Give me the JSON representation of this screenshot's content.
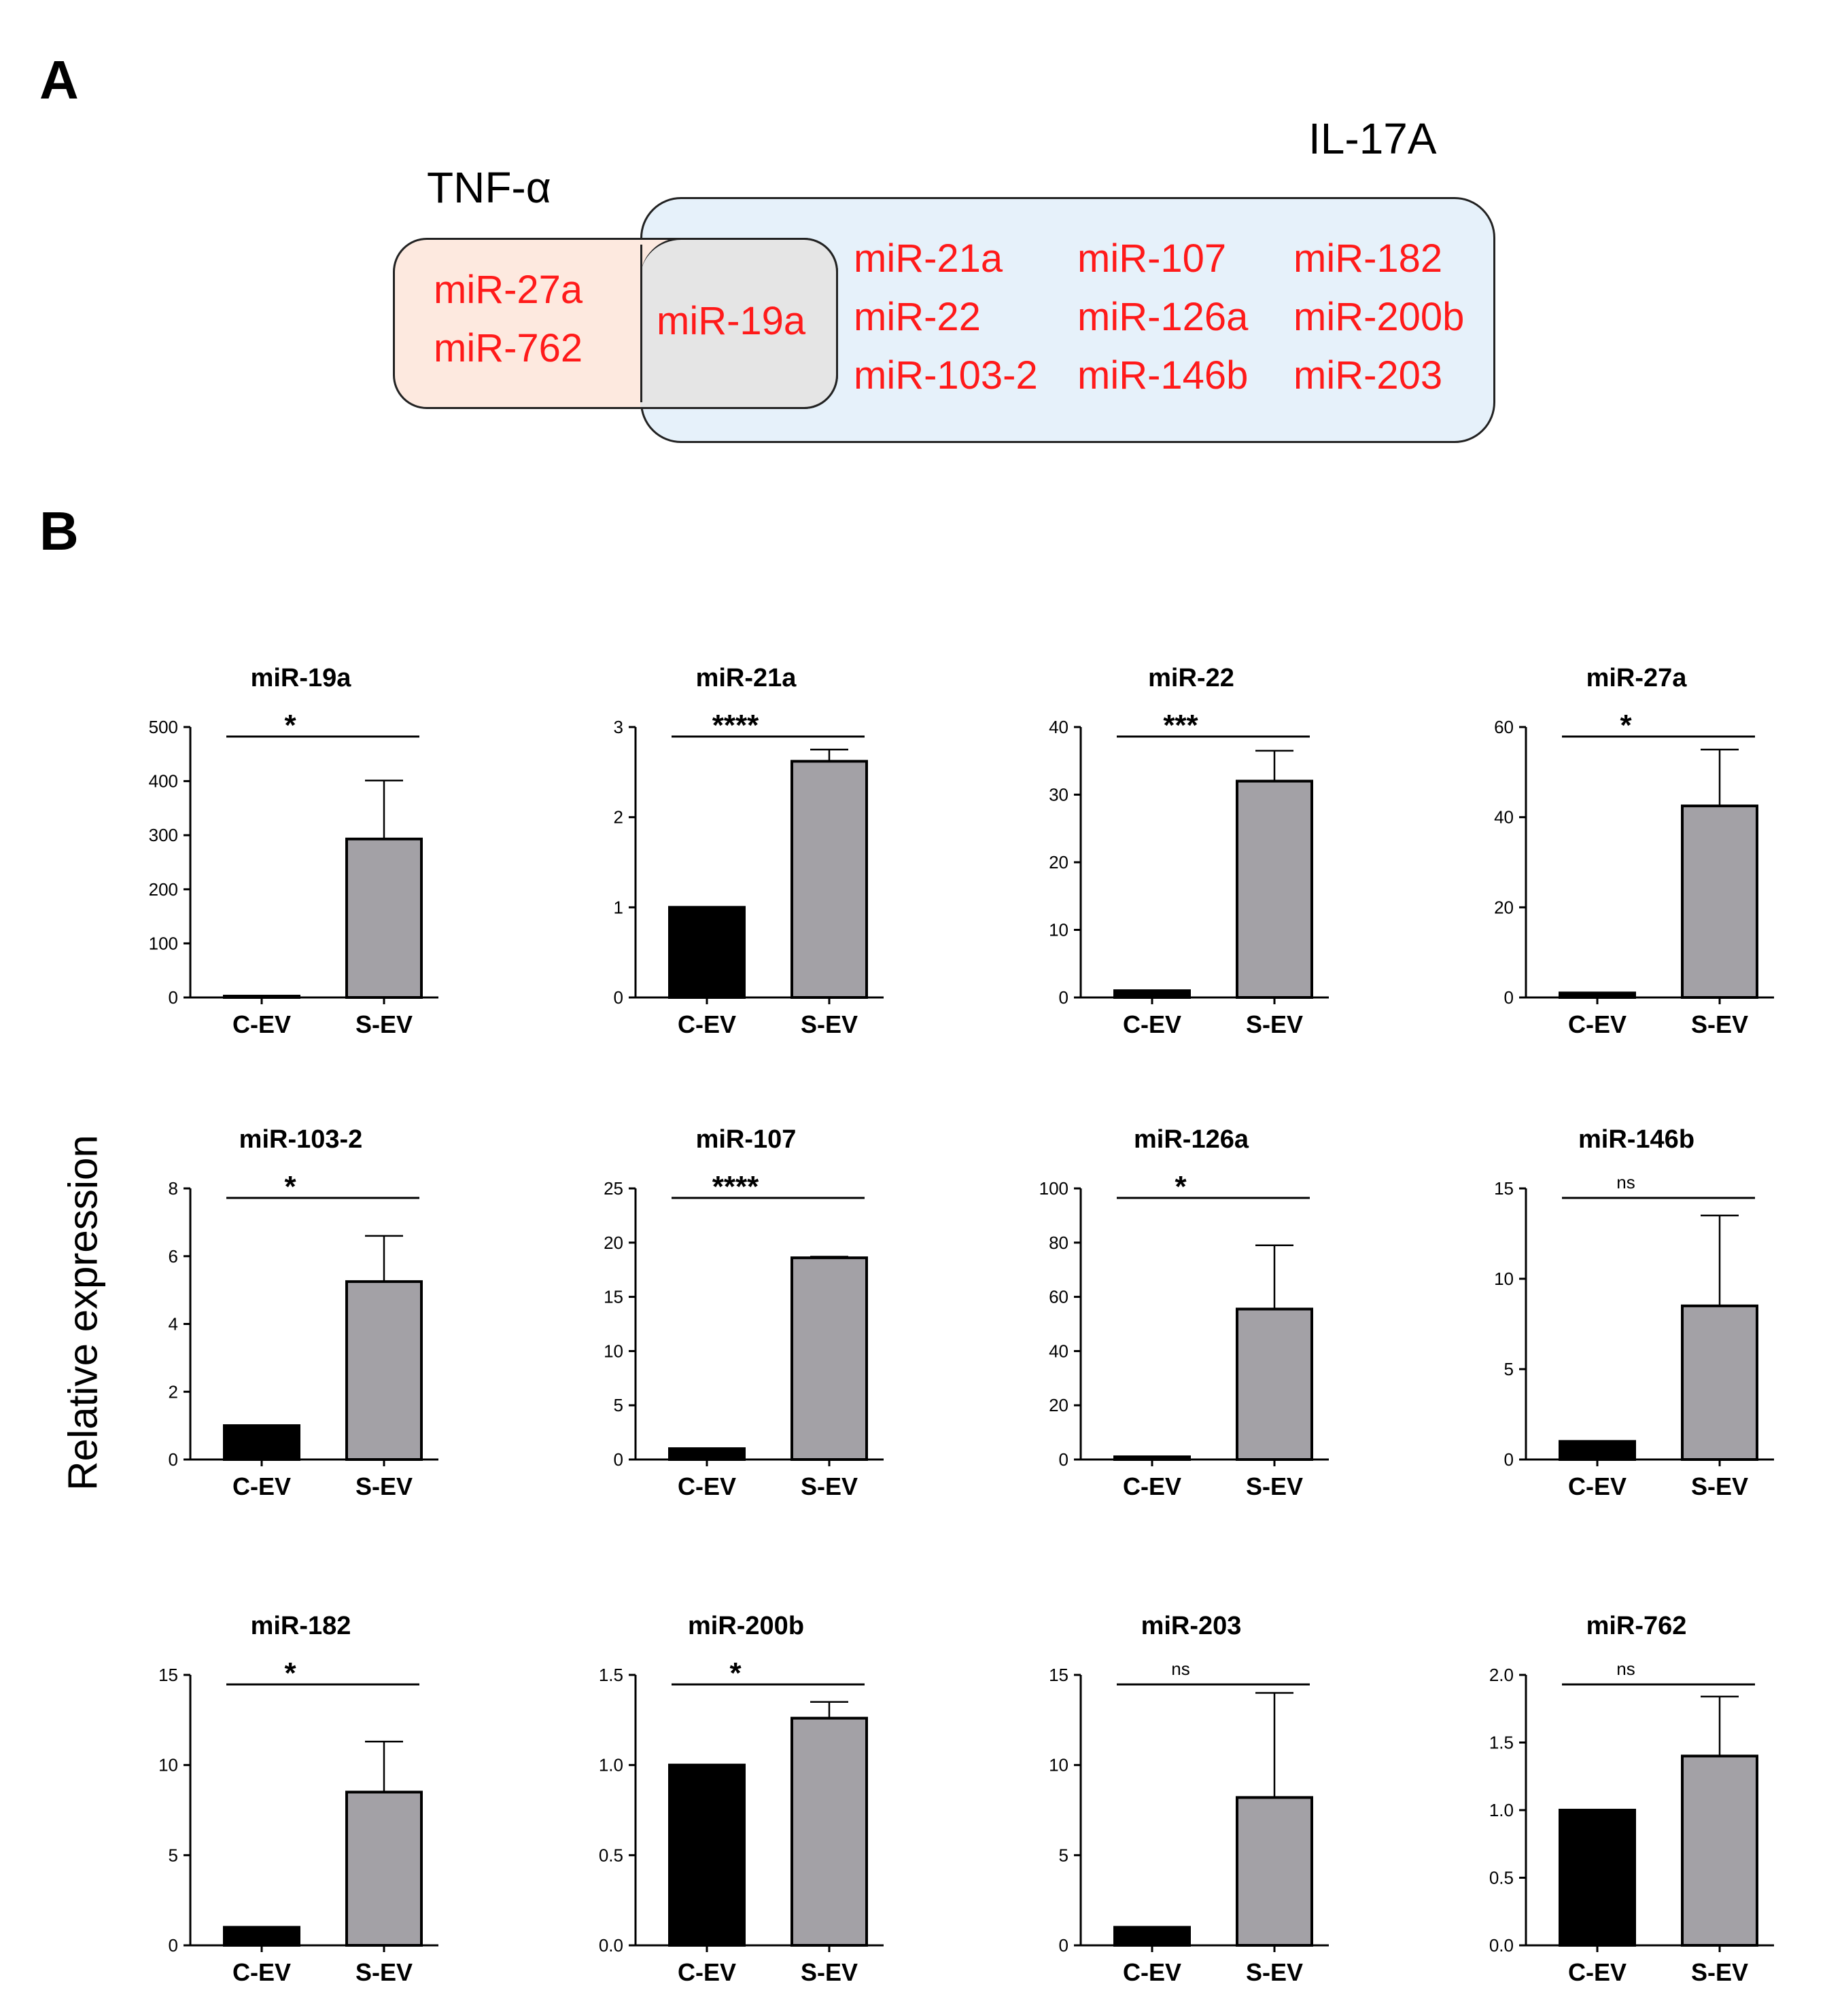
{
  "panels": {
    "a": "A",
    "b": "B"
  },
  "venn": {
    "sets": {
      "tnf": "TNF-α",
      "il17": "IL-17A"
    },
    "tnf_only": [
      "miR-27a",
      "miR-762"
    ],
    "shared": [
      "miR-19a"
    ],
    "il17_only": [
      [
        "miR-21a",
        "miR-22",
        "miR-103-2"
      ],
      [
        "miR-107",
        "miR-126a",
        "miR-146b"
      ],
      [
        "miR-182",
        "miR-200b",
        "miR-203"
      ]
    ],
    "colors": {
      "tnf_fill": "#fde9df",
      "il17_fill": "#e6f1fa",
      "overlap_fill": "#e5e5e5",
      "text": "#ff1a1a"
    }
  },
  "y_axis_label": "Relative expression",
  "chart_data": [
    {
      "type": "bar",
      "title": "miR-19a",
      "categories": [
        "C-EV",
        "S-EV"
      ],
      "values": [
        1,
        293
      ],
      "errors": [
        0,
        108
      ],
      "ylim": [
        0,
        500
      ],
      "ticks": [
        0,
        100,
        200,
        300,
        400,
        500
      ],
      "significance": "*"
    },
    {
      "type": "bar",
      "title": "miR-21a",
      "categories": [
        "C-EV",
        "S-EV"
      ],
      "values": [
        1,
        2.62
      ],
      "errors": [
        0,
        0.13
      ],
      "ylim": [
        0,
        3
      ],
      "ticks": [
        0,
        1,
        2,
        3
      ],
      "significance": "****"
    },
    {
      "type": "bar",
      "title": "miR-22",
      "categories": [
        "C-EV",
        "S-EV"
      ],
      "values": [
        1,
        32
      ],
      "errors": [
        0,
        4.5
      ],
      "ylim": [
        0,
        40
      ],
      "ticks": [
        0,
        10,
        20,
        30,
        40
      ],
      "significance": "***"
    },
    {
      "type": "bar",
      "title": "miR-27a",
      "categories": [
        "C-EV",
        "S-EV"
      ],
      "values": [
        1,
        42.5
      ],
      "errors": [
        0,
        12.5
      ],
      "ylim": [
        0,
        60
      ],
      "ticks": [
        0,
        20,
        40,
        60
      ],
      "significance": "*"
    },
    {
      "type": "bar",
      "title": "miR-103-2",
      "categories": [
        "C-EV",
        "S-EV"
      ],
      "values": [
        1,
        5.25
      ],
      "errors": [
        0,
        1.35
      ],
      "ylim": [
        0,
        8
      ],
      "ticks": [
        0,
        2,
        4,
        6,
        8
      ],
      "significance": "*"
    },
    {
      "type": "bar",
      "title": "miR-107",
      "categories": [
        "C-EV",
        "S-EV"
      ],
      "values": [
        1,
        18.6
      ],
      "errors": [
        0,
        0.1
      ],
      "ylim": [
        0,
        25
      ],
      "ticks": [
        0,
        5,
        10,
        15,
        20,
        25
      ],
      "significance": "****"
    },
    {
      "type": "bar",
      "title": "miR-126a",
      "categories": [
        "C-EV",
        "S-EV"
      ],
      "values": [
        1,
        55.5
      ],
      "errors": [
        0,
        23.5
      ],
      "ylim": [
        0,
        100
      ],
      "ticks": [
        0,
        20,
        40,
        60,
        80,
        100
      ],
      "significance": "*"
    },
    {
      "type": "bar",
      "title": "miR-146b",
      "categories": [
        "C-EV",
        "S-EV"
      ],
      "values": [
        1,
        8.5
      ],
      "errors": [
        0,
        5
      ],
      "ylim": [
        0,
        15
      ],
      "ticks": [
        0,
        5,
        10,
        15
      ],
      "significance": "ns"
    },
    {
      "type": "bar",
      "title": "miR-182",
      "categories": [
        "C-EV",
        "S-EV"
      ],
      "values": [
        1,
        8.5
      ],
      "errors": [
        0,
        2.8
      ],
      "ylim": [
        0,
        15
      ],
      "ticks": [
        0,
        5,
        10,
        15
      ],
      "significance": "*"
    },
    {
      "type": "bar",
      "title": "miR-200b",
      "categories": [
        "C-EV",
        "S-EV"
      ],
      "values": [
        1,
        1.26
      ],
      "errors": [
        0,
        0.09
      ],
      "ylim": [
        0,
        1.5
      ],
      "ticks": [
        "0.0",
        "0.5",
        "1.0",
        "1.5"
      ],
      "significance": "*"
    },
    {
      "type": "bar",
      "title": "miR-203",
      "categories": [
        "C-EV",
        "S-EV"
      ],
      "values": [
        1,
        8.2
      ],
      "errors": [
        0,
        5.8
      ],
      "ylim": [
        0,
        15
      ],
      "ticks": [
        0,
        5,
        10,
        15
      ],
      "significance": "ns"
    },
    {
      "type": "bar",
      "title": "miR-762",
      "categories": [
        "C-EV",
        "S-EV"
      ],
      "values": [
        1,
        1.4
      ],
      "errors": [
        0,
        0.44
      ],
      "ylim": [
        0,
        2
      ],
      "ticks": [
        "0.0",
        "0.5",
        "1.0",
        "1.5",
        "2.0"
      ],
      "significance": "ns"
    }
  ],
  "bar_colors": {
    "control": "#000000",
    "treated": "#a3a1a6"
  }
}
